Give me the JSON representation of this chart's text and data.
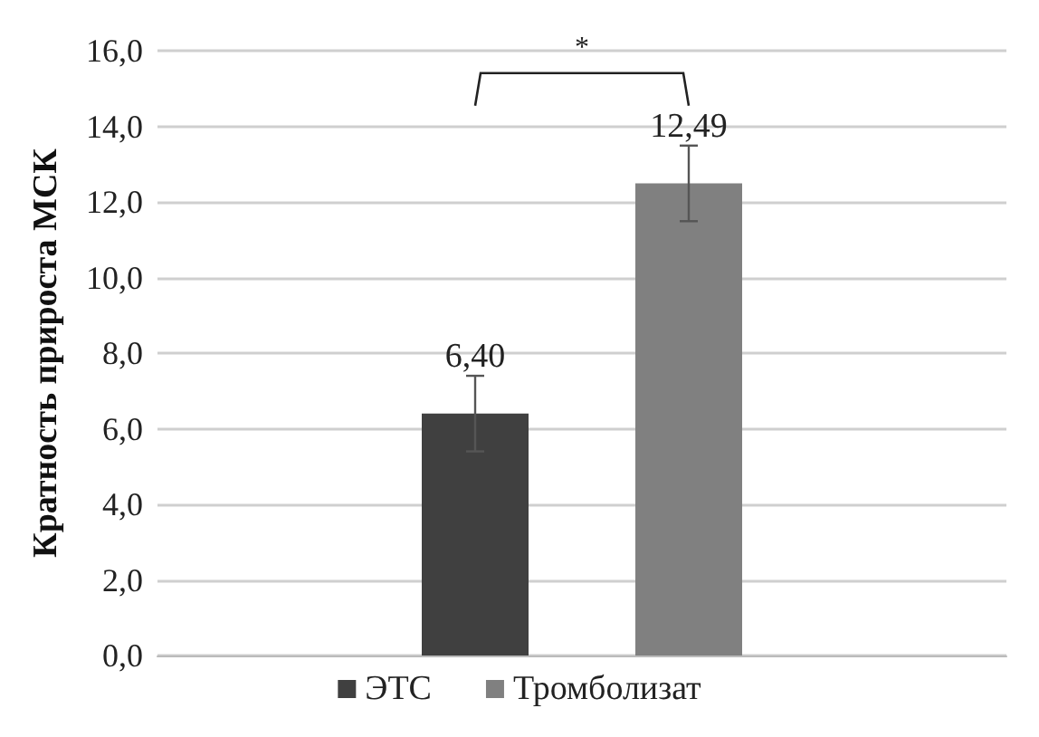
{
  "chart_data": {
    "type": "bar",
    "ylabel": "Кратность прироста МСК",
    "categories": [
      null
    ],
    "series": [
      {
        "name": "ЭТС",
        "color": "#404040",
        "values": [
          6.4
        ],
        "value_labels": [
          "6,40"
        ],
        "errors": [
          1.0
        ]
      },
      {
        "name": "Тромболизат",
        "color": "#808080",
        "values": [
          12.49
        ],
        "value_labels": [
          "12,49"
        ],
        "errors": [
          1.0
        ]
      }
    ],
    "ylim": [
      0,
      16
    ],
    "yticks": [
      {
        "value": 0,
        "label": "0,0"
      },
      {
        "value": 2,
        "label": "2,0"
      },
      {
        "value": 4,
        "label": "4,0"
      },
      {
        "value": 6,
        "label": "6,0"
      },
      {
        "value": 8,
        "label": "8,0"
      },
      {
        "value": 10,
        "label": "10,0"
      },
      {
        "value": 12,
        "label": "12,0"
      },
      {
        "value": 14,
        "label": "14,0"
      },
      {
        "value": 16,
        "label": "16,0"
      }
    ],
    "grid": "y",
    "legend": "bottom",
    "annotations": [
      "*"
    ]
  }
}
